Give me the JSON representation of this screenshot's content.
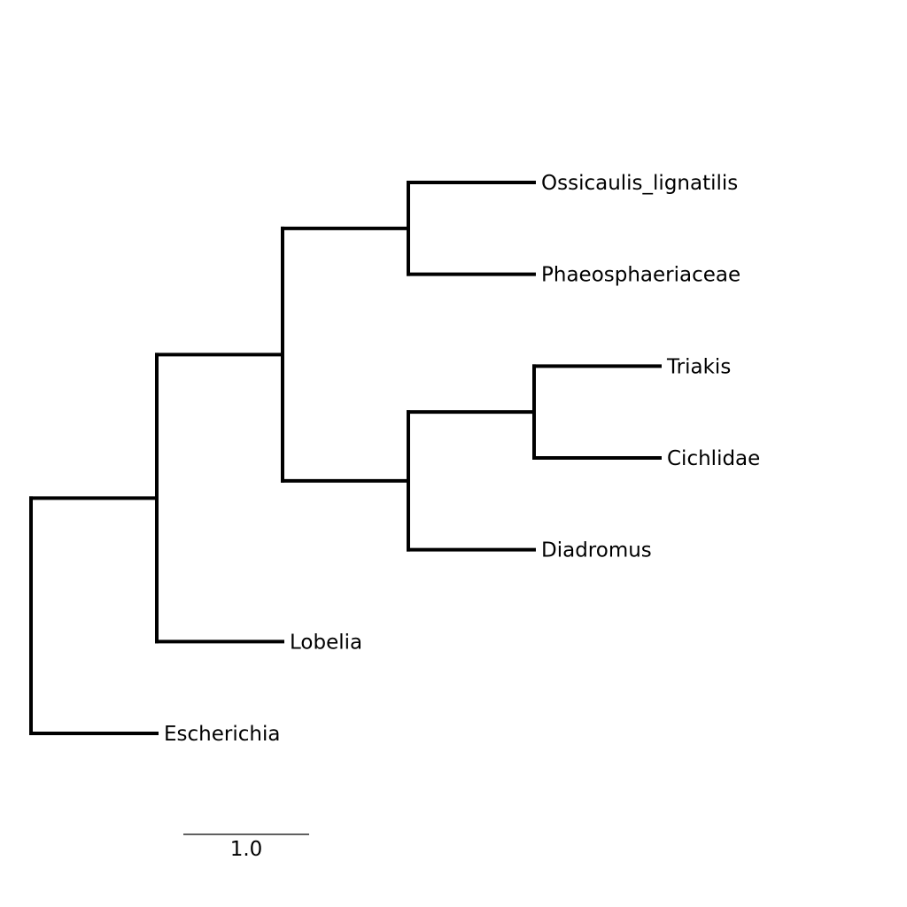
{
  "tree": {
    "type": "phylogenetic-tree",
    "leaves": [
      "Ossicaulis_lignatilis",
      "Phaeosphaeriaceae",
      "Triakis",
      "Cichlidae",
      "Diadromus",
      "Lobelia",
      "Escherichia"
    ],
    "newick": "(Escherichia:1,(Lobelia:1,((Ossicaulis_lignatilis:1,Phaeosphaeriaceae:1):1,((Triakis:1,Cichlidae:1):1,Diadromus:1):1):1):1);",
    "branch_length_unit": 1.0
  },
  "scale_bar": {
    "length": 1.0,
    "label": "1.0"
  }
}
